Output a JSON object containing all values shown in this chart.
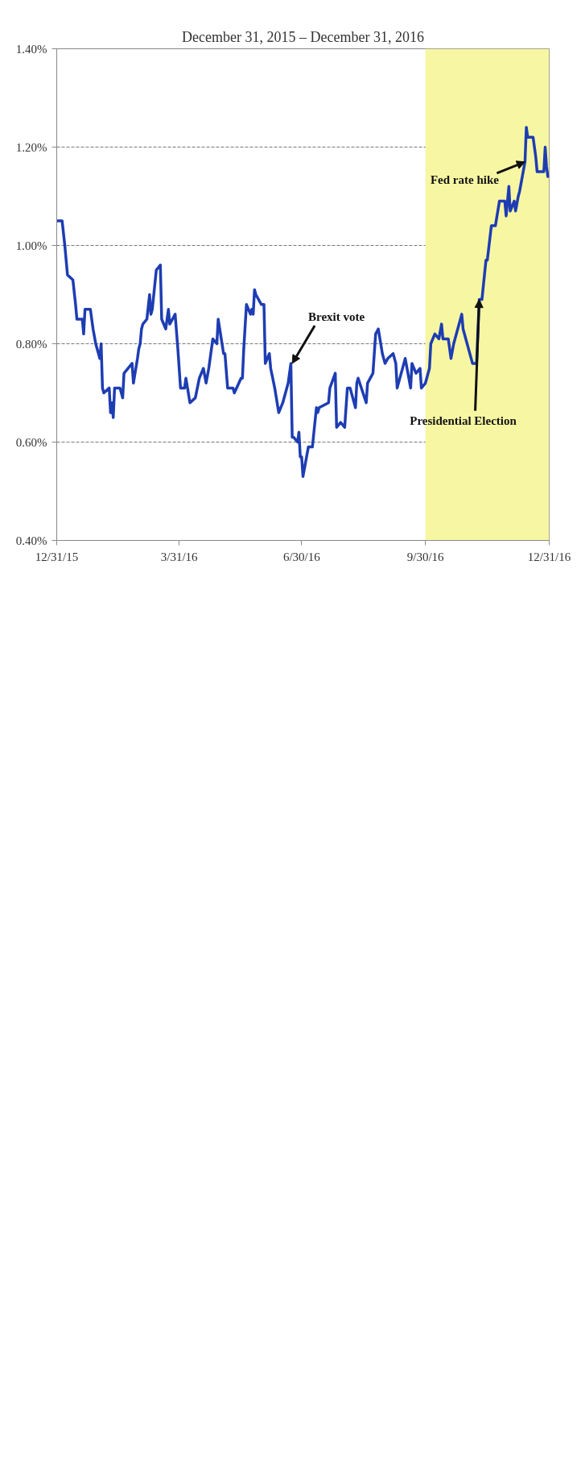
{
  "chart_data": {
    "type": "line",
    "title": "December 31, 2015 – December 31, 2016",
    "x": [
      "2015-12-31",
      "2016-01-04",
      "2016-01-06",
      "2016-01-08",
      "2016-01-12",
      "2016-01-14",
      "2016-01-15",
      "2016-01-19",
      "2016-01-20",
      "2016-01-21",
      "2016-01-25",
      "2016-01-27",
      "2016-01-29",
      "2016-02-01",
      "2016-02-02",
      "2016-02-03",
      "2016-02-04",
      "2016-02-08",
      "2016-02-09",
      "2016-02-10",
      "2016-02-11",
      "2016-02-12",
      "2016-02-16",
      "2016-02-18",
      "2016-02-19",
      "2016-02-25",
      "2016-02-26",
      "2016-02-29",
      "2016-03-01",
      "2016-03-02",
      "2016-03-03",
      "2016-03-04",
      "2016-03-07",
      "2016-03-09",
      "2016-03-10",
      "2016-03-11",
      "2016-03-14",
      "2016-03-17",
      "2016-03-18",
      "2016-03-21",
      "2016-03-22",
      "2016-03-23",
      "2016-03-24",
      "2016-03-28",
      "2016-03-30",
      "2016-04-01",
      "2016-04-04",
      "2016-04-05",
      "2016-04-08",
      "2016-04-12",
      "2016-04-15",
      "2016-04-18",
      "2016-04-20",
      "2016-04-22",
      "2016-04-25",
      "2016-04-28",
      "2016-04-29",
      "2016-05-03",
      "2016-05-04",
      "2016-05-06",
      "2016-05-10",
      "2016-05-11",
      "2016-05-16",
      "2016-05-17",
      "2016-05-18",
      "2016-05-20",
      "2016-05-23",
      "2016-05-24",
      "2016-05-25",
      "2016-05-26",
      "2016-05-27",
      "2016-05-31",
      "2016-06-02",
      "2016-06-03",
      "2016-06-06",
      "2016-06-07",
      "2016-06-10",
      "2016-06-13",
      "2016-06-16",
      "2016-06-20",
      "2016-06-22",
      "2016-06-23",
      "2016-06-24",
      "2016-06-27",
      "2016-06-28",
      "2016-06-29",
      "2016-06-30",
      "2016-07-01",
      "2016-07-05",
      "2016-07-08",
      "2016-07-11",
      "2016-07-12",
      "2016-07-13",
      "2016-07-20",
      "2016-07-21",
      "2016-07-25",
      "2016-07-26",
      "2016-07-29",
      "2016-08-01",
      "2016-08-03",
      "2016-08-05",
      "2016-08-09",
      "2016-08-10",
      "2016-08-11",
      "2016-08-17",
      "2016-08-18",
      "2016-08-22",
      "2016-08-24",
      "2016-08-26",
      "2016-08-29",
      "2016-08-31",
      "2016-09-02",
      "2016-09-06",
      "2016-09-08",
      "2016-09-09",
      "2016-09-14",
      "2016-09-15",
      "2016-09-19",
      "2016-09-20",
      "2016-09-23",
      "2016-09-26",
      "2016-09-27",
      "2016-09-30",
      "2016-10-03",
      "2016-10-04",
      "2016-10-07",
      "2016-10-10",
      "2016-10-12",
      "2016-10-13",
      "2016-10-17",
      "2016-10-19",
      "2016-10-21",
      "2016-10-27",
      "2016-10-28",
      "2016-11-04",
      "2016-11-07",
      "2016-11-09",
      "2016-11-11",
      "2016-11-14",
      "2016-11-15",
      "2016-11-18",
      "2016-11-21",
      "2016-11-24",
      "2016-11-28",
      "2016-11-29",
      "2016-12-01",
      "2016-12-02",
      "2016-12-05",
      "2016-12-06",
      "2016-12-08",
      "2016-12-09",
      "2016-12-13",
      "2016-12-14",
      "2016-12-15",
      "2016-12-19",
      "2016-12-21",
      "2016-12-22",
      "2016-12-27",
      "2016-12-28",
      "2016-12-29",
      "2016-12-30"
    ],
    "series": [
      {
        "color": "#1e3db3",
        "values": [
          1.05,
          1.05,
          1.0,
          0.94,
          0.93,
          0.88,
          0.85,
          0.85,
          0.82,
          0.87,
          0.87,
          0.83,
          0.8,
          0.77,
          0.8,
          0.71,
          0.7,
          0.71,
          0.66,
          0.68,
          0.65,
          0.71,
          0.71,
          0.69,
          0.74,
          0.76,
          0.72,
          0.77,
          0.79,
          0.8,
          0.83,
          0.84,
          0.85,
          0.9,
          0.86,
          0.87,
          0.95,
          0.96,
          0.85,
          0.83,
          0.85,
          0.87,
          0.84,
          0.86,
          0.79,
          0.71,
          0.71,
          0.73,
          0.68,
          0.69,
          0.73,
          0.75,
          0.72,
          0.75,
          0.81,
          0.8,
          0.85,
          0.78,
          0.78,
          0.71,
          0.71,
          0.7,
          0.73,
          0.73,
          0.79,
          0.88,
          0.86,
          0.87,
          0.86,
          0.91,
          0.9,
          0.88,
          0.88,
          0.76,
          0.78,
          0.75,
          0.71,
          0.66,
          0.68,
          0.72,
          0.76,
          0.61,
          0.61,
          0.6,
          0.62,
          0.57,
          0.57,
          0.53,
          0.59,
          0.59,
          0.67,
          0.66,
          0.67,
          0.68,
          0.71,
          0.74,
          0.63,
          0.64,
          0.63,
          0.71,
          0.71,
          0.67,
          0.72,
          0.73,
          0.68,
          0.72,
          0.74,
          0.82,
          0.83,
          0.78,
          0.76,
          0.77,
          0.78,
          0.76,
          0.71,
          0.76,
          0.77,
          0.71,
          0.76,
          0.74,
          0.75,
          0.71,
          0.72,
          0.75,
          0.8,
          0.82,
          0.81,
          0.84,
          0.81,
          0.81,
          0.77,
          0.8,
          0.86,
          0.83,
          0.76,
          0.76,
          0.89,
          0.89,
          0.97,
          0.97,
          1.04,
          1.04,
          1.09,
          1.09,
          1.06,
          1.12,
          1.07,
          1.09,
          1.07,
          1.1,
          1.11,
          1.17,
          1.24,
          1.22,
          1.22,
          1.18,
          1.15,
          1.15,
          1.2,
          1.16,
          1.14
        ]
      }
    ],
    "xlim": [
      "2015-12-31",
      "2016-12-31"
    ],
    "xticks": [
      {
        "value": "2015-12-31",
        "label": "12/31/15"
      },
      {
        "value": "2016-03-31",
        "label": "3/31/16"
      },
      {
        "value": "2016-06-30",
        "label": "6/30/16"
      },
      {
        "value": "2016-09-30",
        "label": "9/30/16"
      },
      {
        "value": "2016-12-31",
        "label": "12/31/16"
      }
    ],
    "ylim": [
      0.4,
      1.4
    ],
    "yticks": [
      {
        "value": 0.4,
        "label": "0.40%"
      },
      {
        "value": 0.6,
        "label": "0.60%"
      },
      {
        "value": 0.8,
        "label": "0.80%"
      },
      {
        "value": 1.0,
        "label": "1.00%"
      },
      {
        "value": 1.2,
        "label": "1.20%"
      },
      {
        "value": 1.4,
        "label": "1.40%"
      }
    ],
    "grid": "y",
    "bands": [
      {
        "axis": "x",
        "from": "2016-09-30",
        "to": "2016-12-31",
        "color": "#f7f7a3"
      }
    ],
    "annotations": [
      {
        "text": "Fed rate hike",
        "x": "2016-12-13",
        "y": 1.17
      },
      {
        "text": "Presidential Election",
        "x": "2016-11-09",
        "y": 0.89
      },
      {
        "text": "Brexit vote",
        "x": "2016-06-23",
        "y": 0.76
      }
    ]
  }
}
